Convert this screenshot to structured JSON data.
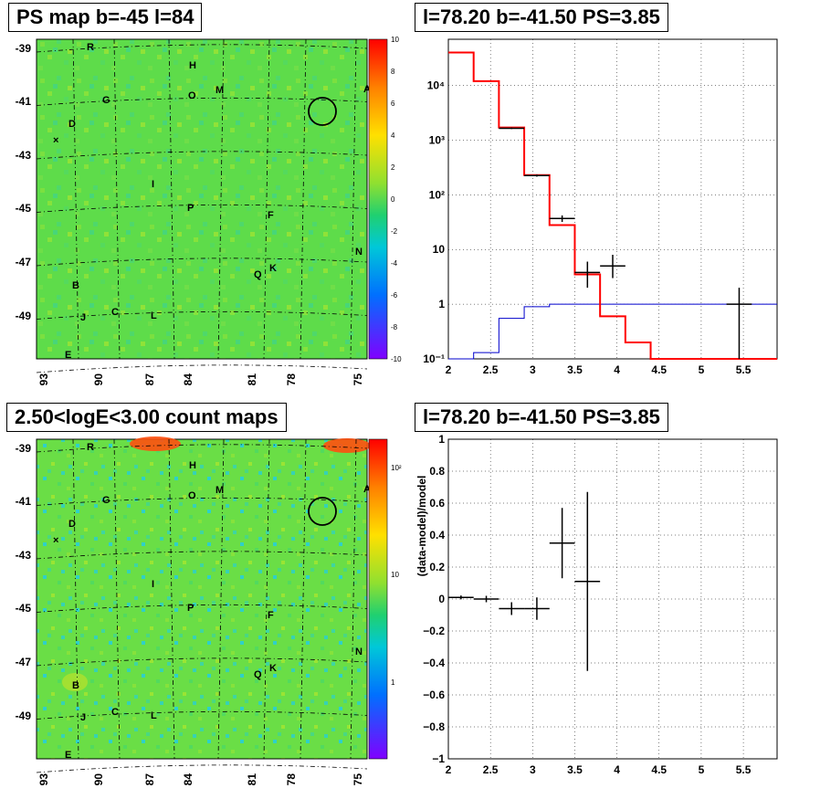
{
  "panels": [
    {
      "id": "ps-map",
      "title": "PS map b=-45 l=84"
    },
    {
      "id": "spectrum",
      "title": "l=78.20 b=-41.50 PS=3.85"
    },
    {
      "id": "count-map",
      "title": "2.50<logE<3.00 count maps"
    },
    {
      "id": "residual",
      "title": "l=78.20 b=-41.50 PS=3.85"
    }
  ],
  "maps": {
    "lat_ticks": [
      "-39",
      "-41",
      "-43",
      "-45",
      "-47",
      "-49"
    ],
    "lon_ticks": [
      "93",
      "90",
      "87",
      "84",
      "81",
      "78",
      "75"
    ],
    "source_labels": [
      "R",
      "H",
      "M",
      "O",
      "G",
      "A",
      "D",
      "I",
      "P",
      "F",
      "N",
      "Q",
      "K",
      "B",
      "J",
      "C",
      "L",
      "E"
    ],
    "ps_colorbar": [
      "10",
      "8",
      "6",
      "4",
      "2",
      "0",
      "-2",
      "-4",
      "-6",
      "-8",
      "-10"
    ],
    "count_colorbar": [
      "10²",
      "10",
      "1"
    ]
  },
  "chart_data": [
    {
      "type": "line",
      "title": "l=78.20 b=-41.50 PS=3.85",
      "xlabel": "",
      "ylabel": "",
      "xlim": [
        2,
        5.9
      ],
      "ylim": [
        0.1,
        70000
      ],
      "yscale": "log",
      "x_ticks": [
        "2",
        "2.5",
        "3",
        "3.5",
        "4",
        "4.5",
        "5",
        "5.5"
      ],
      "y_ticks": [
        "10⁻¹",
        "1",
        "10",
        "10²",
        "10³",
        "10⁴"
      ],
      "grid": true,
      "model_step": {
        "edges": [
          2.0,
          2.3,
          2.6,
          2.9,
          3.2,
          3.5,
          3.8,
          4.1,
          4.4,
          5.9
        ],
        "values": [
          40000,
          12000,
          1700,
          230,
          28,
          3.5,
          0.6,
          0.2,
          0.1
        ]
      },
      "ps_step": {
        "edges": [
          2.0,
          2.3,
          2.6,
          2.9,
          3.2,
          3.5,
          5.9
        ],
        "values": [
          0.1,
          0.13,
          0.55,
          0.9,
          1.0,
          1.0
        ]
      },
      "data_points": [
        {
          "x": 2.75,
          "xerr": 0.15,
          "y": 1650,
          "ylo": 1600,
          "yhi": 1700
        },
        {
          "x": 3.05,
          "xerr": 0.15,
          "y": 225,
          "ylo": 215,
          "yhi": 235
        },
        {
          "x": 3.35,
          "xerr": 0.15,
          "y": 37,
          "ylo": 32,
          "yhi": 42
        },
        {
          "x": 3.65,
          "xerr": 0.15,
          "y": 3.8,
          "ylo": 2.0,
          "yhi": 6.0
        },
        {
          "x": 3.95,
          "xerr": 0.15,
          "y": 5.0,
          "ylo": 3.0,
          "yhi": 8.0
        },
        {
          "x": 5.45,
          "xerr": 0.15,
          "y": 1.0,
          "ylo": 0.1,
          "yhi": 2.0
        }
      ]
    },
    {
      "type": "scatter",
      "title": "l=78.20 b=-41.50 PS=3.85",
      "xlabel": "",
      "ylabel": "(data-model)/model",
      "xlim": [
        2,
        5.9
      ],
      "ylim": [
        -1,
        1
      ],
      "x_ticks": [
        "2",
        "2.5",
        "3",
        "3.5",
        "4",
        "4.5",
        "5",
        "5.5"
      ],
      "y_ticks": [
        "−1",
        "−0.8",
        "−0.6",
        "−0.4",
        "−0.2",
        "0",
        "0.2",
        "0.4",
        "0.6",
        "0.8",
        "1"
      ],
      "grid": true,
      "points": [
        {
          "x": 2.15,
          "xerr": 0.15,
          "y": 0.01,
          "yerr": 0.012
        },
        {
          "x": 2.45,
          "xerr": 0.15,
          "y": 0.0,
          "yerr": 0.02
        },
        {
          "x": 2.75,
          "xerr": 0.15,
          "y": -0.06,
          "yerr": 0.04
        },
        {
          "x": 3.05,
          "xerr": 0.15,
          "y": -0.06,
          "yerr": 0.07
        },
        {
          "x": 3.35,
          "xerr": 0.15,
          "y": 0.35,
          "yerr": 0.22
        },
        {
          "x": 3.65,
          "xerr": 0.15,
          "y": 0.11,
          "yerr": 0.56
        }
      ]
    }
  ]
}
